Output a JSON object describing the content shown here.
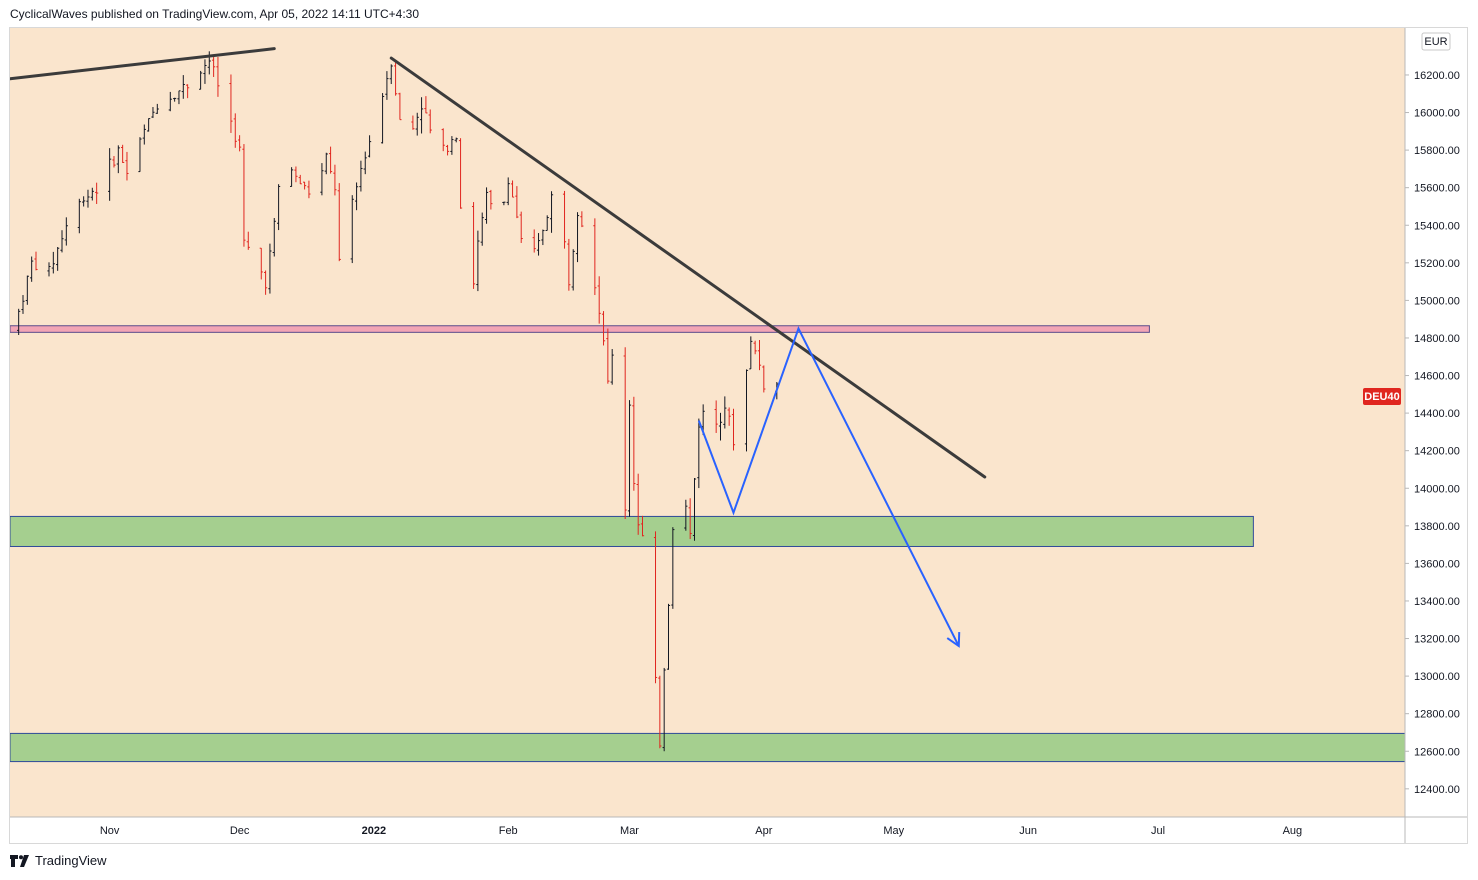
{
  "header": {
    "attribution": "CyclicalWaves published on TradingView.com, Apr 05, 2022 14:11 UTC+4:30"
  },
  "footer": {
    "brand": "TradingView"
  },
  "colors": {
    "background": "#fae5cd",
    "candle_up": "#131722",
    "candle_down": "#e0261f",
    "trendline": "#3b3b3b",
    "projection": "#2962ff",
    "resistance_zone": "#f2a5b5",
    "support_zone": "#a5cf8f",
    "symbol_badge": "#e0261f"
  },
  "chart_data": {
    "type": "ohlc",
    "symbol": "DEU40",
    "currency": "EUR",
    "ylim": [
      12250,
      16450
    ],
    "y_ticks": [
      12400,
      12600,
      12800,
      13000,
      13200,
      13400,
      13600,
      13800,
      14000,
      14200,
      14400,
      14600,
      14800,
      15000,
      15200,
      15400,
      15600,
      15800,
      16000,
      16200
    ],
    "y_tick_labels": [
      "12400.00",
      "12600.00",
      "12800.00",
      "13000.00",
      "13200.00",
      "13400.00",
      "13600.00",
      "13800.00",
      "14000.00",
      "14200.00",
      "14400.00",
      "14600.00",
      "14800.00",
      "15000.00",
      "15200.00",
      "15400.00",
      "15600.00",
      "15800.00",
      "16000.00",
      "16200.00"
    ],
    "x_labels": [
      {
        "text": "Nov",
        "date": "2021-11-01"
      },
      {
        "text": "Dec",
        "date": "2021-12-01"
      },
      {
        "text": "2022",
        "date": "2022-01-01"
      },
      {
        "text": "Feb",
        "date": "2022-02-01"
      },
      {
        "text": "Mar",
        "date": "2022-03-01"
      },
      {
        "text": "Apr",
        "date": "2022-04-01"
      },
      {
        "text": "May",
        "date": "2022-05-01"
      },
      {
        "text": "Jun",
        "date": "2022-06-01"
      },
      {
        "text": "Jul",
        "date": "2022-07-01"
      },
      {
        "text": "Aug",
        "date": "2022-08-01"
      }
    ],
    "xlim": [
      "2021-10-09",
      "2022-08-27"
    ],
    "price_path": [
      [
        "2021-10-10",
        14850
      ],
      [
        "2021-10-14",
        15200
      ],
      [
        "2021-10-18",
        15150
      ],
      [
        "2021-10-22",
        15400
      ],
      [
        "2021-10-26",
        15550
      ],
      [
        "2021-10-30",
        15620
      ],
      [
        "2021-11-03",
        15800
      ],
      [
        "2021-11-05",
        15680
      ],
      [
        "2021-11-09",
        15900
      ],
      [
        "2021-11-12",
        16050
      ],
      [
        "2021-11-16",
        16100
      ],
      [
        "2021-11-19",
        16150
      ],
      [
        "2021-11-22",
        16230
      ],
      [
        "2021-11-24",
        16280
      ],
      [
        "2021-11-26",
        16150
      ],
      [
        "2021-11-29",
        15950
      ],
      [
        "2021-12-01",
        15800
      ],
      [
        "2021-12-02",
        15300
      ],
      [
        "2021-12-05",
        15200
      ],
      [
        "2021-12-07",
        15100
      ],
      [
        "2021-12-09",
        15400
      ],
      [
        "2021-12-11",
        15800
      ],
      [
        "2021-12-14",
        15650
      ],
      [
        "2021-12-18",
        15550
      ],
      [
        "2021-12-21",
        15750
      ],
      [
        "2021-12-23",
        15600
      ],
      [
        "2021-12-24",
        15200
      ],
      [
        "2021-12-27",
        15500
      ],
      [
        "2021-12-29",
        15700
      ],
      [
        "2021-12-31",
        15850
      ],
      [
        "2022-01-03",
        16100
      ],
      [
        "2022-01-05",
        16280
      ],
      [
        "2022-01-07",
        15950
      ],
      [
        "2022-01-09",
        15850
      ],
      [
        "2022-01-12",
        16050
      ],
      [
        "2022-01-14",
        15900
      ],
      [
        "2022-01-17",
        15800
      ],
      [
        "2022-01-20",
        15900
      ],
      [
        "2022-01-21",
        15500
      ],
      [
        "2022-01-24",
        15100
      ],
      [
        "2022-01-25",
        15300
      ],
      [
        "2022-01-27",
        15550
      ],
      [
        "2022-01-30",
        15400
      ],
      [
        "2022-02-01",
        15650
      ],
      [
        "2022-02-03",
        15450
      ],
      [
        "2022-02-05",
        15150
      ],
      [
        "2022-02-08",
        15300
      ],
      [
        "2022-02-11",
        15550
      ],
      [
        "2022-02-13",
        15500
      ],
      [
        "2022-02-15",
        15100
      ],
      [
        "2022-02-17",
        15500
      ],
      [
        "2022-02-19",
        15350
      ],
      [
        "2022-02-21",
        15100
      ],
      [
        "2022-02-23",
        14800
      ],
      [
        "2022-02-24",
        14550
      ],
      [
        "2022-02-25",
        14700
      ],
      [
        "2022-02-27",
        14100
      ],
      [
        "2022-02-28",
        13900
      ],
      [
        "2022-03-01",
        14450
      ],
      [
        "2022-03-02",
        14050
      ],
      [
        "2022-03-03",
        13800
      ],
      [
        "2022-03-05",
        13650
      ],
      [
        "2022-03-06",
        13250
      ],
      [
        "2022-03-07",
        12950
      ],
      [
        "2022-03-08",
        12650
      ],
      [
        "2022-03-09",
        13050
      ],
      [
        "2022-03-10",
        13400
      ],
      [
        "2022-03-11",
        13800
      ],
      [
        "2022-03-12",
        13550
      ],
      [
        "2022-03-13",
        13700
      ],
      [
        "2022-03-14",
        13900
      ],
      [
        "2022-03-15",
        13750
      ],
      [
        "2022-03-17",
        14350
      ],
      [
        "2022-03-19",
        14450
      ],
      [
        "2022-03-21",
        14350
      ],
      [
        "2022-03-23",
        14450
      ],
      [
        "2022-03-25",
        14250
      ],
      [
        "2022-03-27",
        14450
      ],
      [
        "2022-03-29",
        14800
      ],
      [
        "2022-03-31",
        14650
      ],
      [
        "2022-04-02",
        14450
      ],
      [
        "2022-04-04",
        14550
      ]
    ],
    "drawings": {
      "trendlines": [
        {
          "name": "top-rising-line",
          "from": [
            "2021-10-09",
            16180
          ],
          "to": [
            "2021-12-09",
            16340
          ]
        },
        {
          "name": "descending-resistance",
          "from": [
            "2022-01-05",
            16290
          ],
          "to": [
            "2022-05-22",
            14060
          ]
        }
      ],
      "zones": [
        {
          "name": "resistance-zone",
          "date_from": "2021-10-09",
          "date_to": "2022-06-29",
          "price_from": 14830,
          "price_to": 14865
        },
        {
          "name": "support-zone-upper",
          "date_from": "2021-10-09",
          "date_to": "2022-07-23",
          "price_from": 13690,
          "price_to": 13850
        },
        {
          "name": "support-zone-lower",
          "date_from": "2021-10-09",
          "date_to": "2022-08-27",
          "price_from": 12545,
          "price_to": 12695
        }
      ],
      "projection_path": [
        [
          "2022-03-17",
          14360
        ],
        [
          "2022-03-25",
          13870
        ],
        [
          "2022-04-09",
          14850
        ],
        [
          "2022-05-16",
          13160
        ]
      ]
    }
  }
}
